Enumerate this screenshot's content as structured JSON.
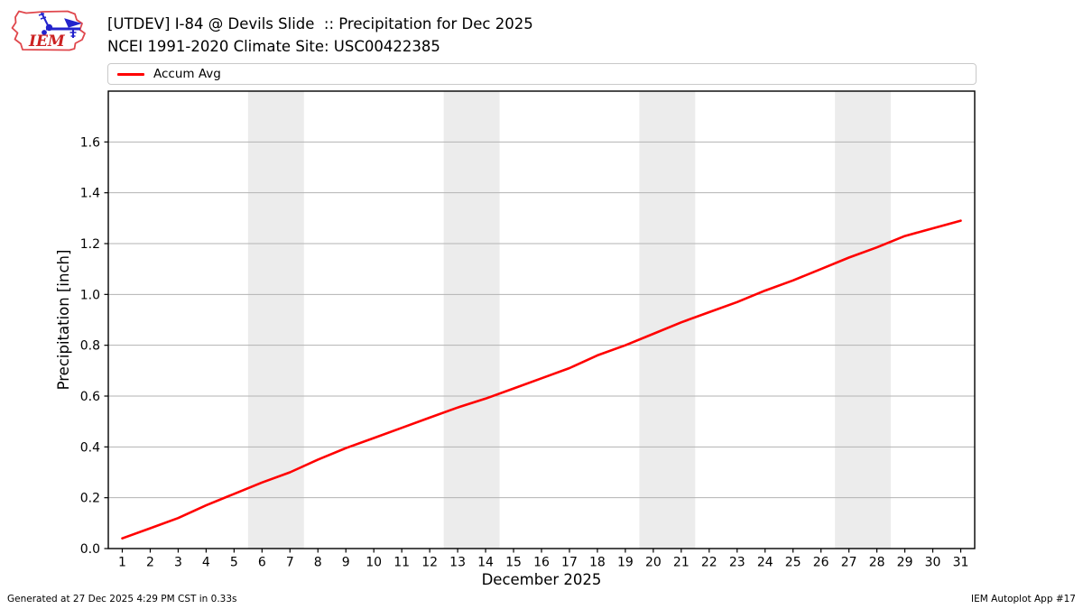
{
  "header": {
    "title_line1": "[UTDEV] I-84 @ Devils Slide  :: Precipitation for Dec 2025",
    "title_line2": "NCEI 1991-2020 Climate Site: USC00422385"
  },
  "logo": {
    "text": "IEM"
  },
  "legend": {
    "items": [
      {
        "label": "Accum Avg",
        "color": "#ff0000"
      }
    ]
  },
  "chart_data": {
    "type": "line",
    "title": "[UTDEV] I-84 @ Devils Slide :: Precipitation for Dec 2025",
    "xlabel": "December 2025",
    "ylabel": "Precipitation [inch]",
    "xlim": [
      0.5,
      31.5
    ],
    "ylim": [
      0,
      1.8
    ],
    "grid": "horizontal-only",
    "legend_position": "top",
    "x": [
      1,
      2,
      3,
      4,
      5,
      6,
      7,
      8,
      9,
      10,
      11,
      12,
      13,
      14,
      15,
      16,
      17,
      18,
      19,
      20,
      21,
      22,
      23,
      24,
      25,
      26,
      27,
      28,
      29,
      30,
      31
    ],
    "xticks": [
      1,
      2,
      3,
      4,
      5,
      6,
      7,
      8,
      9,
      10,
      11,
      12,
      13,
      14,
      15,
      16,
      17,
      18,
      19,
      20,
      21,
      22,
      23,
      24,
      25,
      26,
      27,
      28,
      29,
      30,
      31
    ],
    "yticks": [
      0.0,
      0.2,
      0.4,
      0.6,
      0.8,
      1.0,
      1.2,
      1.4,
      1.6
    ],
    "series": [
      {
        "name": "Accum Avg",
        "color": "#ff0000",
        "values": [
          0.04,
          0.08,
          0.12,
          0.17,
          0.215,
          0.26,
          0.3,
          0.35,
          0.395,
          0.435,
          0.475,
          0.515,
          0.555,
          0.59,
          0.63,
          0.67,
          0.71,
          0.76,
          0.8,
          0.845,
          0.89,
          0.93,
          0.97,
          1.015,
          1.055,
          1.1,
          1.145,
          1.185,
          1.23,
          1.26,
          1.29
        ]
      }
    ],
    "weekend_bands": [
      [
        5.5,
        7.5
      ],
      [
        12.5,
        14.5
      ],
      [
        19.5,
        21.5
      ],
      [
        26.5,
        28.5
      ]
    ],
    "band_color": "#ececec",
    "grid_color": "#b3b3b3",
    "spine_color": "#000000",
    "text_color": "#000000"
  },
  "footer": {
    "left": "Generated at 27 Dec 2025 4:29 PM CST in 0.33s",
    "right": "IEM Autoplot App #17"
  }
}
